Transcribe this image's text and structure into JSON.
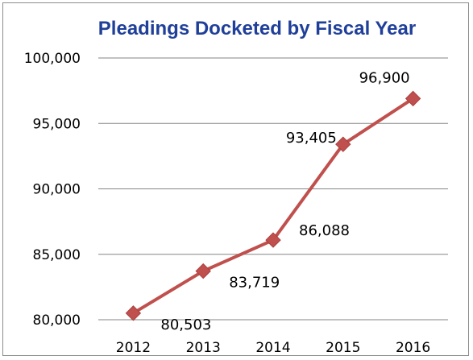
{
  "chart_data": {
    "type": "line",
    "title": "Pleadings Docketed by Fiscal Year",
    "xlabel": "",
    "ylabel": "",
    "categories": [
      "2012",
      "2013",
      "2014",
      "2015",
      "2016"
    ],
    "series": [
      {
        "values": [
          80503,
          83719,
          86088,
          93405,
          96900
        ],
        "labels": [
          "80,503",
          "83,719",
          "86,088",
          "93,405",
          "96,900"
        ]
      }
    ],
    "ylim": [
      80000,
      100000
    ],
    "yticks": [
      80000,
      85000,
      90000,
      95000,
      100000
    ],
    "ytick_labels": [
      "80,000",
      "85,000",
      "90,000",
      "95,000",
      "100,000"
    ],
    "grid": true,
    "legend": "none",
    "colors": {
      "line": "#c0504d",
      "marker": "#c0504d",
      "grid": "#868686",
      "title": "#1f3f99"
    }
  }
}
